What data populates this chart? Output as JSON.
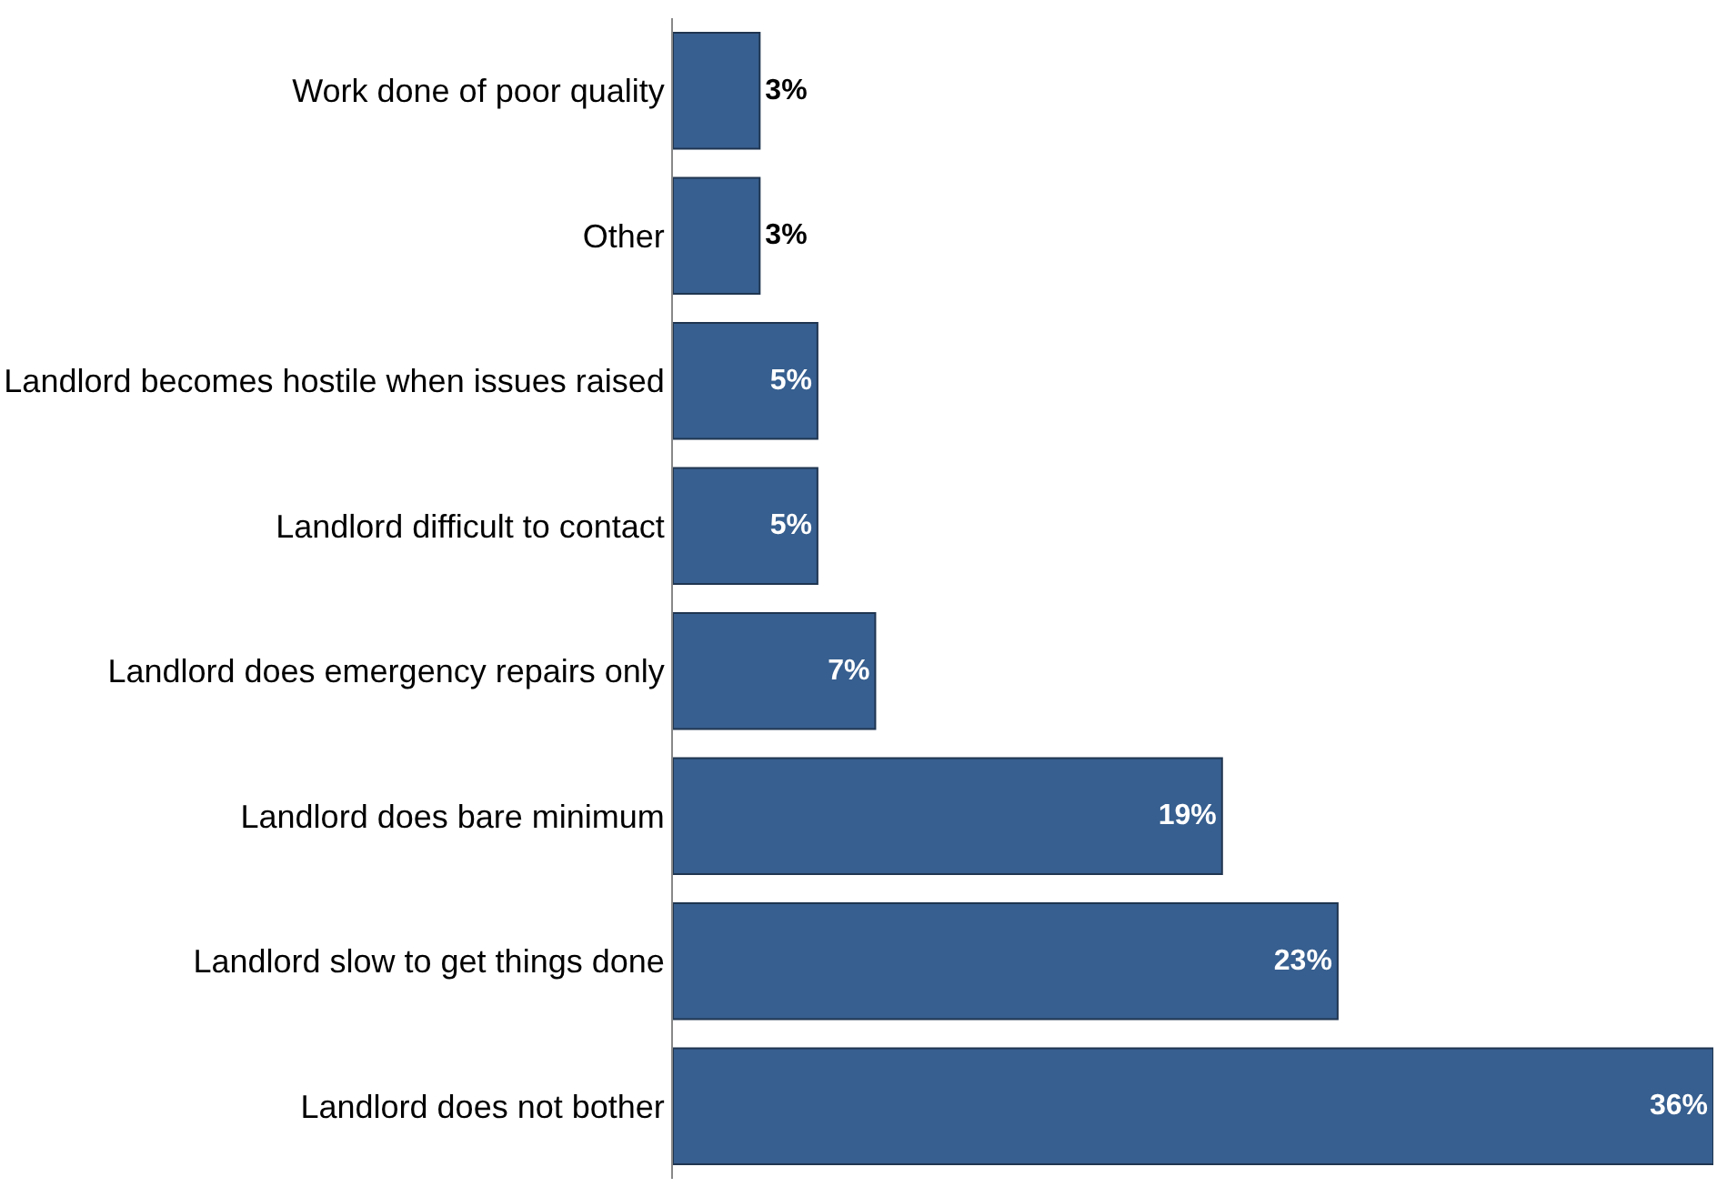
{
  "chart_data": {
    "type": "bar",
    "orientation": "horizontal",
    "categories": [
      "Work done of poor quality",
      "Other",
      "Landlord becomes hostile when issues raised",
      "Landlord difficult to contact",
      "Landlord does emergency repairs only",
      "Landlord does bare minimum",
      "Landlord slow to get things done",
      "Landlord does not bother"
    ],
    "values": [
      3,
      3,
      5,
      5,
      7,
      19,
      23,
      36
    ],
    "value_labels": [
      "3%",
      "3%",
      "5%",
      "5%",
      "7%",
      "19%",
      "23%",
      "36%"
    ],
    "color": "#375f8f",
    "legend": false
  }
}
